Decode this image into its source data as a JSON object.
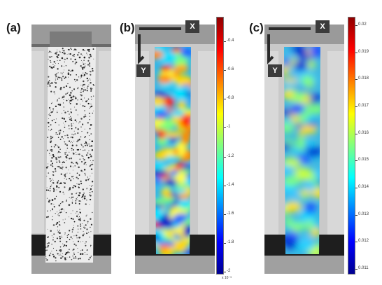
{
  "panels": {
    "a": {
      "label": "(a)"
    },
    "b": {
      "label": "(b)",
      "axis_x": "X",
      "axis_y": "Y",
      "colorbar": {
        "ticks": [
          "-0.4",
          "-0.6",
          "-0.8",
          "-1",
          "-1.2",
          "-1.4",
          "-1.6",
          "-1.8",
          "-2"
        ],
        "multiplier": "x 10⁻³",
        "colormap": "jet"
      }
    },
    "c": {
      "label": "(c)",
      "axis_x": "X",
      "axis_y": "Y",
      "colorbar": {
        "ticks": [
          "0.02",
          "0.019",
          "0.018",
          "0.017",
          "0.016",
          "0.015",
          "0.014",
          "0.013",
          "0.012",
          "0.011"
        ],
        "colormap": "jet"
      }
    }
  },
  "colors": {
    "jet_low": "#00008f",
    "jet_high": "#8f0000",
    "speckle": "#f0f0f0",
    "grip": "#1e1e1e"
  }
}
